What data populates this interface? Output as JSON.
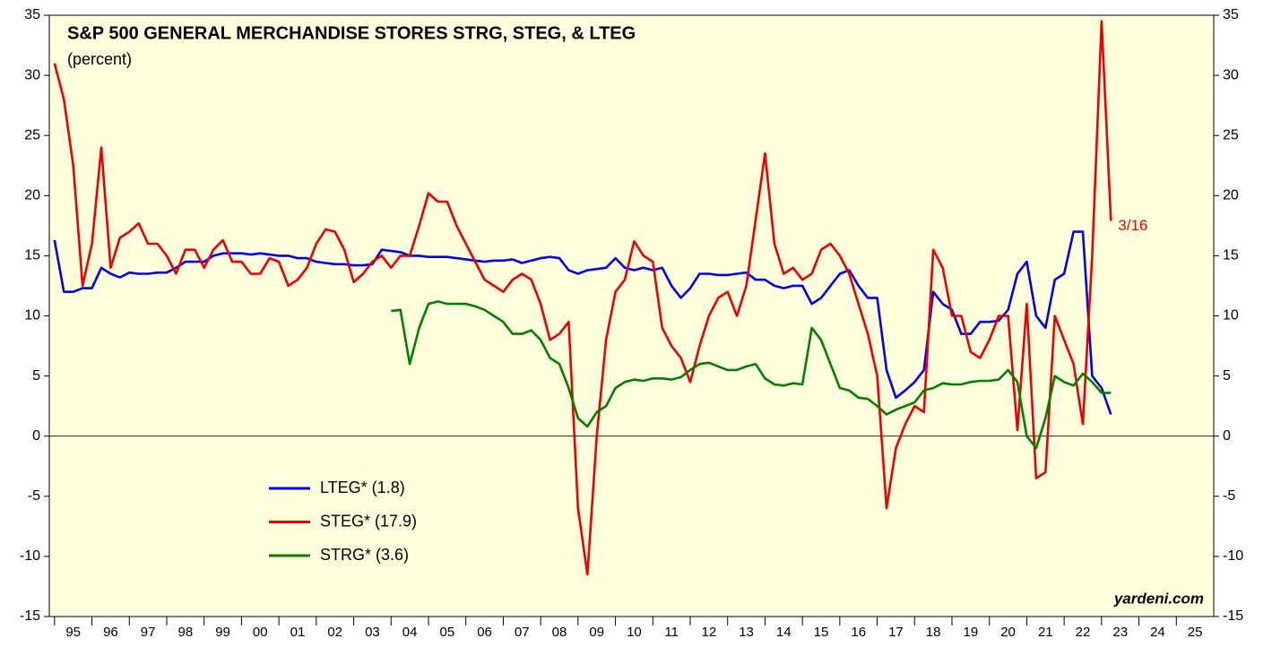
{
  "chart_data": {
    "type": "line",
    "title": "S&P 500 GENERAL MERCHANDISE STORES STRG, STEG, & LTEG",
    "subtitle": "(percent)",
    "source": "yardeni.com",
    "annotations": [
      {
        "text": "3/16"
      }
    ],
    "legend": "lower left",
    "grid": false,
    "xlim": [
      1994.86,
      2026
    ],
    "ylim": [
      -15,
      35
    ],
    "yticks": [
      -15,
      -10,
      -5,
      0,
      5,
      10,
      15,
      20,
      25,
      30,
      35
    ],
    "xticks": [
      {
        "value": 1995,
        "label": "95"
      },
      {
        "value": 1996,
        "label": "96"
      },
      {
        "value": 1997,
        "label": "97"
      },
      {
        "value": 1998,
        "label": "98"
      },
      {
        "value": 1999,
        "label": "99"
      },
      {
        "value": 2000,
        "label": "00"
      },
      {
        "value": 2001,
        "label": "01"
      },
      {
        "value": 2002,
        "label": "02"
      },
      {
        "value": 2003,
        "label": "03"
      },
      {
        "value": 2004,
        "label": "04"
      },
      {
        "value": 2005,
        "label": "05"
      },
      {
        "value": 2006,
        "label": "06"
      },
      {
        "value": 2007,
        "label": "07"
      },
      {
        "value": 2008,
        "label": "08"
      },
      {
        "value": 2009,
        "label": "09"
      },
      {
        "value": 2010,
        "label": "10"
      },
      {
        "value": 2011,
        "label": "11"
      },
      {
        "value": 2012,
        "label": "12"
      },
      {
        "value": 2013,
        "label": "13"
      },
      {
        "value": 2014,
        "label": "14"
      },
      {
        "value": 2015,
        "label": "15"
      },
      {
        "value": 2016,
        "label": "16"
      },
      {
        "value": 2017,
        "label": "17"
      },
      {
        "value": 2018,
        "label": "18"
      },
      {
        "value": 2019,
        "label": "19"
      },
      {
        "value": 2020,
        "label": "20"
      },
      {
        "value": 2021,
        "label": "21"
      },
      {
        "value": 2022,
        "label": "22"
      },
      {
        "value": 2023,
        "label": "23"
      },
      {
        "value": 2024,
        "label": "24"
      },
      {
        "value": 2025,
        "label": "25"
      }
    ],
    "x": [
      1995,
      1995.25,
      1995.5,
      1995.75,
      1996,
      1996.25,
      1996.5,
      1996.75,
      1997,
      1997.25,
      1997.5,
      1997.75,
      1998,
      1998.25,
      1998.5,
      1998.75,
      1999,
      1999.25,
      1999.5,
      1999.75,
      2000,
      2000.25,
      2000.5,
      2000.75,
      2001,
      2001.25,
      2001.5,
      2001.75,
      2002,
      2002.25,
      2002.5,
      2002.75,
      2003,
      2003.25,
      2003.5,
      2003.75,
      2004,
      2004.25,
      2004.5,
      2004.75,
      2005,
      2005.25,
      2005.5,
      2005.75,
      2006,
      2006.25,
      2006.5,
      2006.75,
      2007,
      2007.25,
      2007.5,
      2007.75,
      2008,
      2008.25,
      2008.5,
      2008.75,
      2009,
      2009.25,
      2009.5,
      2009.75,
      2010,
      2010.25,
      2010.5,
      2010.75,
      2011,
      2011.25,
      2011.5,
      2011.75,
      2012,
      2012.25,
      2012.5,
      2012.75,
      2013,
      2013.25,
      2013.5,
      2013.75,
      2014,
      2014.25,
      2014.5,
      2014.75,
      2015,
      2015.25,
      2015.5,
      2015.75,
      2016,
      2016.25,
      2016.5,
      2016.75,
      2017,
      2017.25,
      2017.5,
      2017.75,
      2018,
      2018.25,
      2018.5,
      2018.75,
      2019,
      2019.25,
      2019.5,
      2019.75,
      2020,
      2020.25,
      2020.5,
      2020.75,
      2021,
      2021.25,
      2021.5,
      2021.75,
      2022,
      2022.25,
      2022.5,
      2022.75,
      2023,
      2023.25
    ],
    "series": [
      {
        "name": "LTEG* (1.8)",
        "color": "#0000ee",
        "values": [
          16.3,
          12,
          12,
          12.3,
          12.3,
          14,
          13.5,
          13.2,
          13.6,
          13.5,
          13.5,
          13.6,
          13.6,
          14,
          14.5,
          14.5,
          14.5,
          15,
          15.2,
          15.2,
          15.2,
          15.1,
          15.2,
          15.1,
          15,
          15,
          14.8,
          14.8,
          14.5,
          14.4,
          14.3,
          14.3,
          14.2,
          14.2,
          14.3,
          15.5,
          15.4,
          15.3,
          15,
          15,
          14.9,
          14.9,
          14.9,
          14.8,
          14.7,
          14.6,
          14.5,
          14.6,
          14.6,
          14.7,
          14.4,
          14.6,
          14.8,
          14.9,
          14.8,
          13.8,
          13.5,
          13.8,
          13.9,
          14,
          14.8,
          14,
          13.8,
          14,
          13.8,
          14,
          12.5,
          11.5,
          12.3,
          13.5,
          13.5,
          13.4,
          13.4,
          13.5,
          13.6,
          13,
          13,
          12.5,
          12.3,
          12.5,
          12.5,
          11,
          11.5,
          12.5,
          13.5,
          13.8,
          12.5,
          11.5,
          11.5,
          5.5,
          3.2,
          3.8,
          4.5,
          5.5,
          12,
          11,
          10.5,
          8.5,
          8.5,
          9.5,
          9.5,
          9.6,
          10.5,
          13.5,
          14.5,
          10,
          9,
          13,
          13.5,
          17,
          17,
          5,
          4,
          1.8
        ]
      },
      {
        "name": "STEG* (17.9)",
        "color": "#ee0000",
        "values": [
          31,
          28,
          22.5,
          12.5,
          16,
          24,
          14,
          16.5,
          17,
          17.7,
          16,
          16,
          15,
          13.5,
          15.5,
          15.5,
          14,
          15.5,
          16.3,
          14.5,
          14.5,
          13.5,
          13.5,
          14.8,
          14.5,
          12.5,
          13,
          14,
          16,
          17.2,
          17,
          15.5,
          12.8,
          13.5,
          14.5,
          15,
          14,
          15,
          15,
          17.5,
          20.2,
          19.5,
          19.5,
          17.5,
          16,
          14.5,
          13,
          12.5,
          12,
          13,
          13.5,
          13,
          11,
          8,
          8.5,
          9.5,
          -6,
          -11.5,
          0,
          8,
          12,
          13,
          16.2,
          15,
          14.5,
          9,
          7.5,
          6.5,
          4.5,
          7.5,
          10,
          11.5,
          12,
          10,
          12.5,
          18,
          23.5,
          16,
          13.5,
          14,
          13,
          13.5,
          15.5,
          16,
          15,
          13.5,
          11,
          8.5,
          5,
          -6,
          -1,
          1,
          2.5,
          2,
          15.5,
          14,
          10,
          10,
          7,
          6.5,
          8,
          10,
          10,
          0.5,
          11,
          -3.5,
          -3,
          10,
          8,
          6,
          1,
          15,
          34.5,
          17.9
        ]
      },
      {
        "name": "STRG* (3.6)",
        "color": "#008000",
        "values": [
          null,
          null,
          null,
          null,
          null,
          null,
          null,
          null,
          null,
          null,
          null,
          null,
          null,
          null,
          null,
          null,
          null,
          null,
          null,
          null,
          null,
          null,
          null,
          null,
          null,
          null,
          null,
          null,
          null,
          null,
          null,
          null,
          null,
          null,
          null,
          null,
          10.4,
          10.5,
          6,
          9,
          11,
          11.2,
          11,
          11,
          11,
          10.8,
          10.5,
          10,
          9.5,
          8.5,
          8.5,
          8.8,
          8,
          6.5,
          6,
          4,
          1.5,
          0.8,
          2,
          2.5,
          4,
          4.5,
          4.7,
          4.6,
          4.8,
          4.8,
          4.7,
          4.9,
          5.5,
          6,
          6.1,
          5.8,
          5.5,
          5.5,
          5.8,
          6,
          4.8,
          4.3,
          4.2,
          4.4,
          4.3,
          9,
          8,
          6,
          4,
          3.8,
          3.2,
          3.1,
          2.5,
          1.8,
          2.2,
          2.5,
          2.8,
          3.8,
          4,
          4.4,
          4.3,
          4.3,
          4.5,
          4.6,
          4.6,
          4.7,
          5.5,
          4.5,
          0,
          -1,
          1.5,
          5,
          4.5,
          4.2,
          5.2,
          4.5,
          3.6,
          3.6
        ]
      }
    ]
  }
}
